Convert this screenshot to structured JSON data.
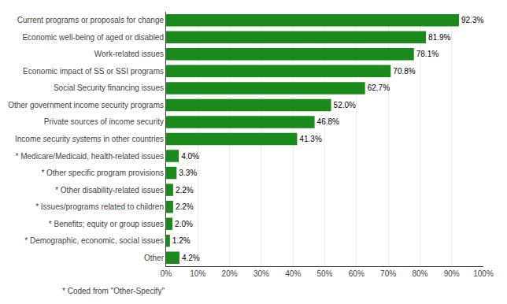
{
  "chart_data": {
    "type": "bar",
    "orientation": "horizontal",
    "categories": [
      "Current programs or proposals for change",
      "Economic well-being of aged or disabled",
      "Work-related issues",
      "Economic impact of SS or SSI programs",
      "Social Security financing issues",
      "Other government income security programs",
      "Private sources of income security",
      "Income security systems in other countries",
      "* Medicare/Medicaid, health-related issues",
      "* Other specific program provisions",
      "* Other disability-related issues",
      "* Issues/programs related to children",
      "* Benefits; equity or group issues",
      "* Demographic, economic, social issues",
      "Other"
    ],
    "values": [
      92.3,
      81.9,
      78.1,
      70.8,
      62.7,
      52.0,
      46.8,
      41.3,
      4.0,
      3.3,
      2.2,
      2.2,
      2.0,
      1.2,
      4.2
    ],
    "value_labels": [
      "92.3%",
      "81.9%",
      "78.1%",
      "70.8%",
      "62.7%",
      "52.0%",
      "46.8%",
      "41.3%",
      "4.0%",
      "3.3%",
      "2.2%",
      "2.2%",
      "2.0%",
      "1.2%",
      "4.2%"
    ],
    "data_labels": true,
    "color": "#1a8a1a",
    "xlim": [
      0,
      100
    ],
    "xticks": [
      {
        "value": 0,
        "label": "0%"
      },
      {
        "value": 10,
        "label": "10%"
      },
      {
        "value": 20,
        "label": "20%"
      },
      {
        "value": 30,
        "label": "30%"
      },
      {
        "value": 40,
        "label": "40%"
      },
      {
        "value": 50,
        "label": "50%"
      },
      {
        "value": 60,
        "label": "60%"
      },
      {
        "value": 70,
        "label": "70%"
      },
      {
        "value": 80,
        "label": "80%"
      },
      {
        "value": 90,
        "label": "90%"
      },
      {
        "value": 100,
        "label": "100%"
      }
    ],
    "grid": true,
    "annotations": [
      "* Coded from \"Other-Specify\""
    ]
  }
}
